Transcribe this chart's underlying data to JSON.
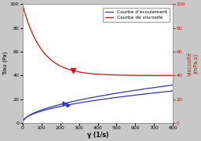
{
  "xlabel": "γ (1/s)",
  "ylabel_left": "Tiau (Pa)",
  "ylabel_right": "Viscosité\n(mPa.s)",
  "xlim": [
    0,
    800
  ],
  "ylim_left": [
    0,
    100
  ],
  "ylim_right": [
    0,
    100
  ],
  "xticks": [
    0,
    100,
    200,
    300,
    400,
    500,
    600,
    700,
    800
  ],
  "yticks_left": [
    0,
    20,
    40,
    60,
    80,
    100
  ],
  "yticks_right": [
    0,
    20,
    40,
    60,
    80,
    100
  ],
  "legend_entries": [
    "Courbe d’écoulement",
    "Courbe de viscosité"
  ],
  "blue_color": "#3333bb",
  "red_color": "#cc1111",
  "background_color": "#c8c8c8",
  "plot_bg": "#ffffff",
  "border_color": "#999999",
  "flow_end": 32,
  "flow2_end": 27,
  "visc_start": 100,
  "visc_end": 40,
  "visc_decay": 100
}
